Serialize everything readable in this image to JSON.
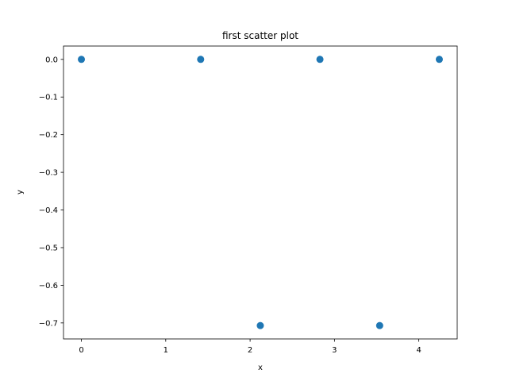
{
  "chart_data": {
    "type": "scatter",
    "title": "first scatter plot",
    "xlabel": "x",
    "ylabel": "y",
    "xlim": [
      -0.212,
      4.455
    ],
    "ylim": [
      -0.7425,
      0.0354
    ],
    "x_ticks": [
      {
        "value": 0,
        "label": "0"
      },
      {
        "value": 1,
        "label": "1"
      },
      {
        "value": 2,
        "label": "2"
      },
      {
        "value": 3,
        "label": "3"
      },
      {
        "value": 4,
        "label": "4"
      }
    ],
    "y_ticks": [
      {
        "value": 0.0,
        "label": "0.0"
      },
      {
        "value": -0.1,
        "label": "−0.1"
      },
      {
        "value": -0.2,
        "label": "−0.2"
      },
      {
        "value": -0.3,
        "label": "−0.3"
      },
      {
        "value": -0.4,
        "label": "−0.4"
      },
      {
        "value": -0.5,
        "label": "−0.5"
      },
      {
        "value": -0.6,
        "label": "−0.6"
      },
      {
        "value": -0.7,
        "label": "−0.7"
      }
    ],
    "grid": false,
    "series": [
      {
        "color": "#1f77b4",
        "points": [
          {
            "x": 0.0,
            "y": 0.0
          },
          {
            "x": 1.414,
            "y": 0.0
          },
          {
            "x": 2.121,
            "y": -0.707
          },
          {
            "x": 2.828,
            "y": 0.0
          },
          {
            "x": 3.536,
            "y": -0.707
          },
          {
            "x": 4.243,
            "y": 0.0
          }
        ]
      }
    ]
  }
}
